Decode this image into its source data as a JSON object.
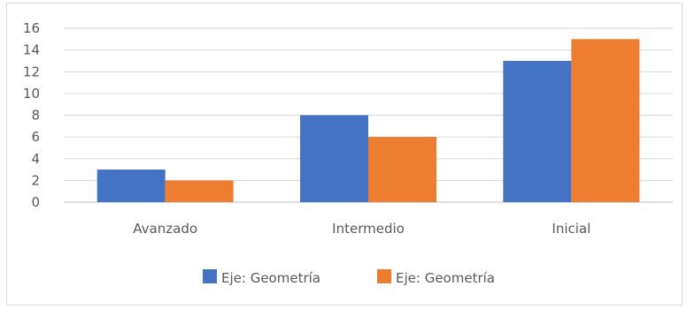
{
  "chart_data": {
    "type": "bar",
    "categories": [
      "Avanzado",
      "Intermedio",
      "Inicial"
    ],
    "series": [
      {
        "name": "Eje: Geometría",
        "values": [
          3,
          8,
          13
        ],
        "color": "#4472C4"
      },
      {
        "name": "Eje: Geometría",
        "values": [
          2,
          6,
          15
        ],
        "color": "#ED7D31"
      }
    ],
    "yticks": [
      "0",
      "2",
      "4",
      "6",
      "8",
      "10",
      "12",
      "14",
      "16"
    ],
    "ylim": [
      0,
      16
    ],
    "grid": true,
    "legend_position": "bottom"
  }
}
